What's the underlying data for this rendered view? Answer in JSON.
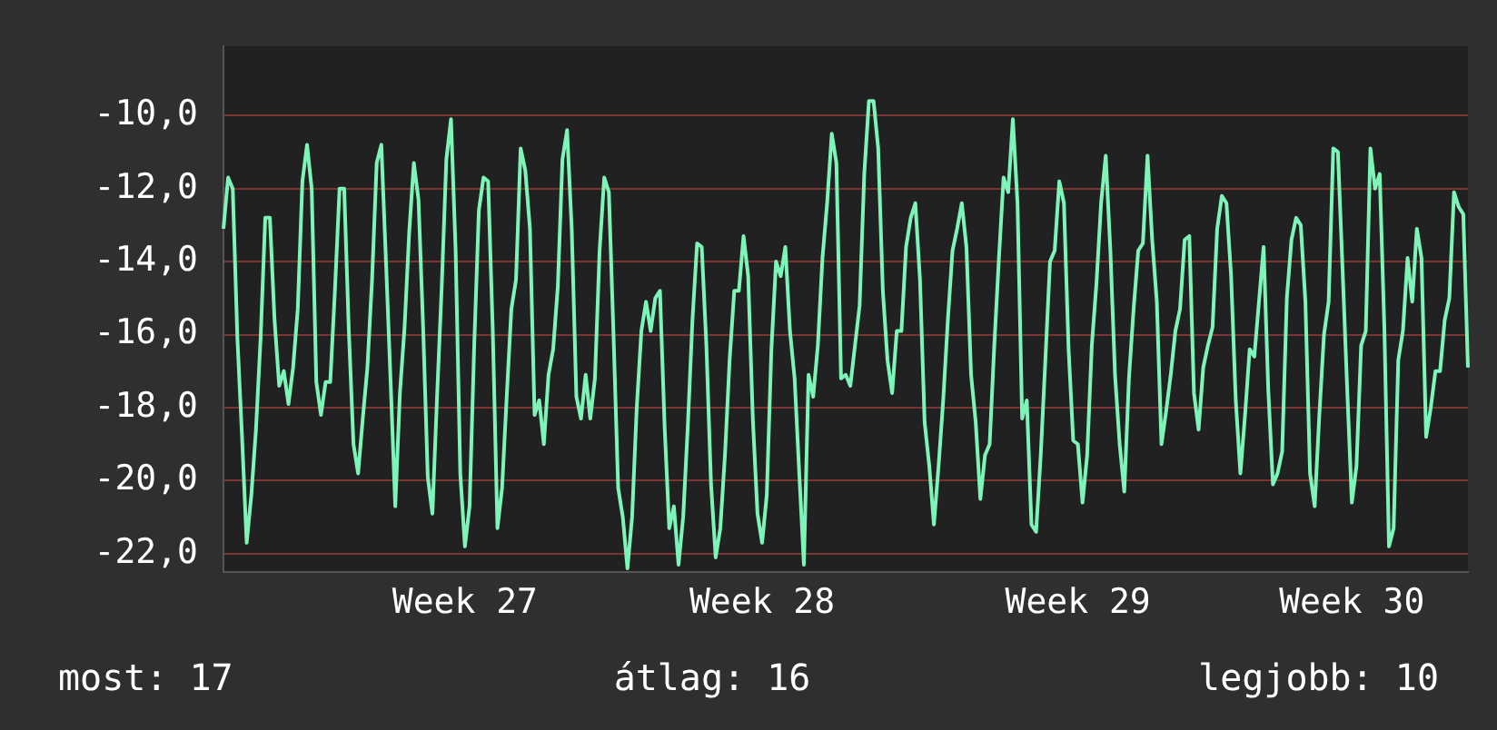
{
  "chart_data": {
    "type": "line",
    "ylim": [
      -22.5,
      -8.1
    ],
    "categories": [
      null,
      null,
      null,
      null,
      null,
      null,
      null,
      null,
      null,
      null,
      null,
      null,
      null,
      null,
      null,
      null,
      null,
      null,
      null,
      null,
      null,
      null,
      null,
      null,
      null,
      null,
      null,
      null,
      null,
      null,
      null,
      null,
      null,
      null,
      null,
      null,
      null,
      null,
      null,
      null,
      null,
      null,
      null,
      null,
      null,
      null,
      null,
      null,
      null,
      null,
      null,
      null,
      "Week 27",
      null,
      null,
      null,
      null,
      null,
      null,
      null,
      null,
      null,
      null,
      null,
      null,
      null,
      null,
      null,
      null,
      null,
      null,
      null,
      null,
      null,
      null,
      null,
      null,
      null,
      null,
      null,
      null,
      null,
      null,
      null,
      null,
      null,
      null,
      null,
      null,
      null,
      null,
      null,
      null,
      null,
      null,
      null,
      null,
      null,
      null,
      null,
      null,
      null,
      null,
      null,
      null,
      null,
      null,
      null,
      null,
      null,
      null,
      null,
      null,
      null,
      null,
      null,
      "Week 28",
      null,
      null,
      null,
      null,
      null,
      null,
      null,
      null,
      null,
      null,
      null,
      null,
      null,
      null,
      null,
      null,
      null,
      null,
      null,
      null,
      null,
      null,
      null,
      null,
      null,
      null,
      null,
      null,
      null,
      null,
      null,
      null,
      null,
      null,
      null,
      null,
      null,
      null,
      null,
      null,
      null,
      null,
      null,
      null,
      null,
      null,
      null,
      null,
      null,
      null,
      null,
      null,
      null,
      null,
      null,
      null,
      null,
      null,
      null,
      null,
      null,
      null,
      null,
      null,
      null,
      null,
      null,
      "Week 29",
      null,
      null,
      null,
      null,
      null,
      null,
      null,
      null,
      null,
      null,
      null,
      null,
      null,
      null,
      null,
      null,
      null,
      null,
      null,
      null,
      null,
      null,
      null,
      null,
      null,
      null,
      null,
      null,
      null,
      null,
      null,
      null,
      null,
      null,
      null,
      null,
      null,
      null,
      null,
      null,
      null,
      null,
      null,
      null,
      null,
      null,
      null,
      null,
      null,
      null,
      null,
      null,
      null,
      null,
      null,
      null,
      null,
      null,
      "Week 30",
      null,
      null,
      null,
      null,
      null,
      null,
      null,
      null,
      null,
      null,
      null,
      null,
      null,
      null,
      null,
      null,
      null,
      null,
      null,
      null,
      null,
      null,
      null,
      null,
      null
    ],
    "yticks": [
      {
        "value": -10,
        "label": "-10,0"
      },
      {
        "value": -12,
        "label": "-12,0"
      },
      {
        "value": -14,
        "label": "-14,0"
      },
      {
        "value": -16,
        "label": "-16,0"
      },
      {
        "value": -18,
        "label": "-18,0"
      },
      {
        "value": -20,
        "label": "-20,0"
      },
      {
        "value": -22,
        "label": "-22,0"
      }
    ],
    "grid": "y",
    "legend": false,
    "marker": "none",
    "line_style": "solid",
    "annotations": [
      "most: 17",
      "átlag: 16",
      "legjobb: 10"
    ],
    "series": [
      {
        "color": "#7df5b8",
        "values": [
          -13.1,
          -11.7,
          -12.0,
          -16.1,
          -18.8,
          -21.7,
          -20.4,
          -18.6,
          -16.1,
          -12.8,
          -12.8,
          -15.6,
          -17.4,
          -17.0,
          -17.9,
          -16.9,
          -15.3,
          -11.8,
          -10.8,
          -12.0,
          -17.3,
          -18.2,
          -17.3,
          -17.3,
          -14.8,
          -12.0,
          -12.0,
          -15.9,
          -19.0,
          -19.8,
          -18.3,
          -16.9,
          -14.5,
          -11.3,
          -10.8,
          -14.0,
          -17.3,
          -20.7,
          -17.6,
          -15.8,
          -13.2,
          -11.3,
          -12.3,
          -15.8,
          -19.9,
          -20.9,
          -17.7,
          -14.7,
          -11.2,
          -10.1,
          -13.7,
          -19.8,
          -21.8,
          -20.7,
          -16.3,
          -12.6,
          -11.7,
          -11.8,
          -15.9,
          -21.3,
          -20.2,
          -17.7,
          -15.3,
          -14.5,
          -10.9,
          -11.5,
          -13.1,
          -18.2,
          -17.8,
          -19.0,
          -17.1,
          -16.4,
          -14.7,
          -11.2,
          -10.4,
          -13.1,
          -17.7,
          -18.3,
          -17.1,
          -18.3,
          -17.2,
          -13.7,
          -11.7,
          -12.1,
          -16.0,
          -20.2,
          -21.0,
          -22.4,
          -21.0,
          -18.0,
          -15.9,
          -15.1,
          -15.9,
          -15.0,
          -14.8,
          -18.5,
          -21.3,
          -20.7,
          -22.3,
          -21.0,
          -18.5,
          -15.6,
          -13.5,
          -13.6,
          -16.3,
          -20.1,
          -22.1,
          -21.3,
          -19.3,
          -16.7,
          -14.8,
          -14.8,
          -13.3,
          -14.4,
          -18.3,
          -20.9,
          -21.7,
          -20.4,
          -16.4,
          -14.0,
          -14.4,
          -13.6,
          -15.9,
          -17.2,
          -19.8,
          -22.3,
          -17.1,
          -17.7,
          -16.3,
          -13.9,
          -12.4,
          -10.5,
          -11.3,
          -17.2,
          -17.1,
          -17.4,
          -16.3,
          -15.2,
          -11.6,
          -9.6,
          -9.6,
          -10.9,
          -14.8,
          -16.7,
          -17.6,
          -15.9,
          -15.9,
          -13.6,
          -12.8,
          -12.4,
          -14.5,
          -18.4,
          -19.6,
          -21.2,
          -19.6,
          -17.8,
          -15.6,
          -13.7,
          -13.1,
          -12.4,
          -13.6,
          -17.1,
          -18.4,
          -20.5,
          -19.3,
          -19.0,
          -16.3,
          -13.9,
          -11.7,
          -12.1,
          -10.1,
          -12.4,
          -18.3,
          -17.8,
          -21.2,
          -21.4,
          -19.3,
          -16.7,
          -14.0,
          -13.7,
          -11.8,
          -12.4,
          -16.4,
          -18.9,
          -19.0,
          -20.6,
          -19.3,
          -16.3,
          -14.6,
          -12.4,
          -11.1,
          -13.7,
          -17.1,
          -19.0,
          -20.3,
          -17.2,
          -15.3,
          -13.7,
          -13.5,
          -11.1,
          -13.4,
          -15.1,
          -19.0,
          -18.1,
          -17.1,
          -15.9,
          -15.3,
          -13.4,
          -13.3,
          -17.6,
          -18.6,
          -16.9,
          -16.3,
          -15.8,
          -13.1,
          -12.2,
          -12.4,
          -14.4,
          -17.8,
          -19.8,
          -18.2,
          -16.4,
          -16.6,
          -15.1,
          -13.6,
          -17.5,
          -20.1,
          -19.8,
          -19.2,
          -15.0,
          -13.4,
          -12.8,
          -13.0,
          -15.1,
          -19.8,
          -20.7,
          -18.2,
          -16.0,
          -15.1,
          -10.9,
          -11.0,
          -14.2,
          -17.5,
          -20.6,
          -19.6,
          -16.3,
          -15.9,
          -10.9,
          -12.0,
          -11.6,
          -15.8,
          -21.8,
          -21.3,
          -16.7,
          -15.9,
          -13.9,
          -15.1,
          -13.1,
          -13.9,
          -18.8,
          -18.0,
          -17.0,
          -17.0,
          -15.6,
          -15.0,
          -12.1,
          -12.5,
          -12.7,
          -16.9
        ]
      }
    ]
  }
}
